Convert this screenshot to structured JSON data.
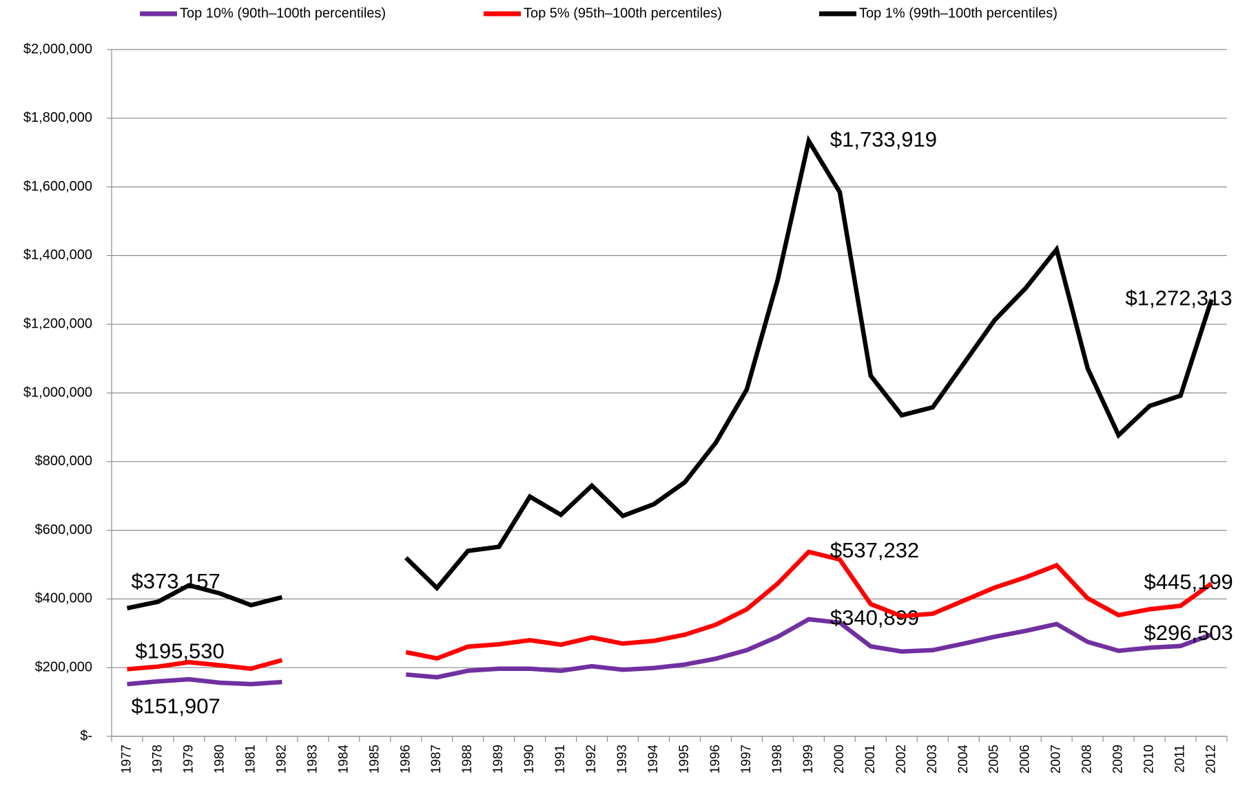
{
  "chart_data": {
    "type": "line",
    "categories": [
      "1977",
      "1978",
      "1979",
      "1980",
      "1981",
      "1982",
      "1983",
      "1984",
      "1985",
      "1986",
      "1987",
      "1988",
      "1989",
      "1990",
      "1991",
      "1992",
      "1993",
      "1994",
      "1995",
      "1996",
      "1997",
      "1998",
      "1999",
      "2000",
      "2001",
      "2002",
      "2003",
      "2004",
      "2005",
      "2006",
      "2007",
      "2008",
      "2009",
      "2010",
      "2011",
      "2012"
    ],
    "series": [
      {
        "name": "Top 10% (90th–100th percentiles)",
        "color": "#7030a0",
        "values": [
          151907,
          160000,
          166000,
          156000,
          152000,
          158000,
          null,
          null,
          null,
          180000,
          172000,
          191000,
          197000,
          197000,
          191000,
          204000,
          194000,
          199000,
          209000,
          226000,
          251000,
          290000,
          340899,
          331000,
          262000,
          247000,
          251000,
          270000,
          290000,
          307000,
          327000,
          275000,
          249000,
          258000,
          263000,
          296503
        ],
        "value_labels": [
          "$151,907",
          null,
          null,
          null,
          null,
          null,
          null,
          null,
          null,
          null,
          null,
          null,
          null,
          null,
          null,
          null,
          null,
          null,
          null,
          null,
          null,
          null,
          "$340,899",
          null,
          null,
          null,
          null,
          null,
          null,
          null,
          null,
          null,
          null,
          null,
          null,
          "$296,503"
        ]
      },
      {
        "name": "Top 5% (95th–100th percentiles)",
        "color": "#ff0000",
        "values": [
          195530,
          203000,
          216000,
          207000,
          197000,
          222000,
          null,
          null,
          null,
          245000,
          227000,
          261000,
          268000,
          280000,
          267000,
          288000,
          270000,
          278000,
          296000,
          325000,
          370000,
          445000,
          537232,
          515000,
          385000,
          350000,
          357000,
          395000,
          433000,
          463000,
          498000,
          402000,
          353000,
          370000,
          380000,
          445199
        ],
        "value_labels": [
          "$195,530",
          null,
          null,
          null,
          null,
          null,
          null,
          null,
          null,
          null,
          null,
          null,
          null,
          null,
          null,
          null,
          null,
          null,
          null,
          null,
          null,
          null,
          "$537,232",
          null,
          null,
          null,
          null,
          null,
          null,
          null,
          null,
          null,
          null,
          null,
          null,
          "$445,199"
        ]
      },
      {
        "name": "Top 1% (99th–100th percentiles)",
        "color": "#000000",
        "values": [
          373157,
          392000,
          440000,
          416000,
          382000,
          405000,
          null,
          null,
          null,
          520000,
          432000,
          540000,
          552000,
          698000,
          645000,
          730000,
          642000,
          676000,
          740000,
          855000,
          1010000,
          1330000,
          1733919,
          1585000,
          1050000,
          935000,
          958000,
          1085000,
          1212000,
          1305000,
          1418000,
          1072000,
          877000,
          962000,
          992000,
          1272313
        ],
        "value_labels": [
          "$373,157",
          null,
          null,
          null,
          null,
          null,
          null,
          null,
          null,
          null,
          null,
          null,
          null,
          null,
          null,
          null,
          null,
          null,
          null,
          null,
          null,
          null,
          "$1,733,919",
          null,
          null,
          null,
          null,
          null,
          null,
          null,
          null,
          null,
          null,
          null,
          null,
          "$1,272,313"
        ]
      }
    ],
    "ylim": [
      0,
      2000000
    ],
    "yticks": [
      {
        "value": 0,
        "label": "$-"
      },
      {
        "value": 200000,
        "label": "$200,000"
      },
      {
        "value": 400000,
        "label": "$400,000"
      },
      {
        "value": 600000,
        "label": "$600,000"
      },
      {
        "value": 800000,
        "label": "$800,000"
      },
      {
        "value": 1000000,
        "label": "$1,000,000"
      },
      {
        "value": 1200000,
        "label": "$1,200,000"
      },
      {
        "value": 1400000,
        "label": "$1,400,000"
      },
      {
        "value": 1600000,
        "label": "$1,600,000"
      },
      {
        "value": 1800000,
        "label": "$1,800,000"
      },
      {
        "value": 2000000,
        "label": "$2,000,000"
      }
    ],
    "grid": true,
    "legend": "top"
  }
}
